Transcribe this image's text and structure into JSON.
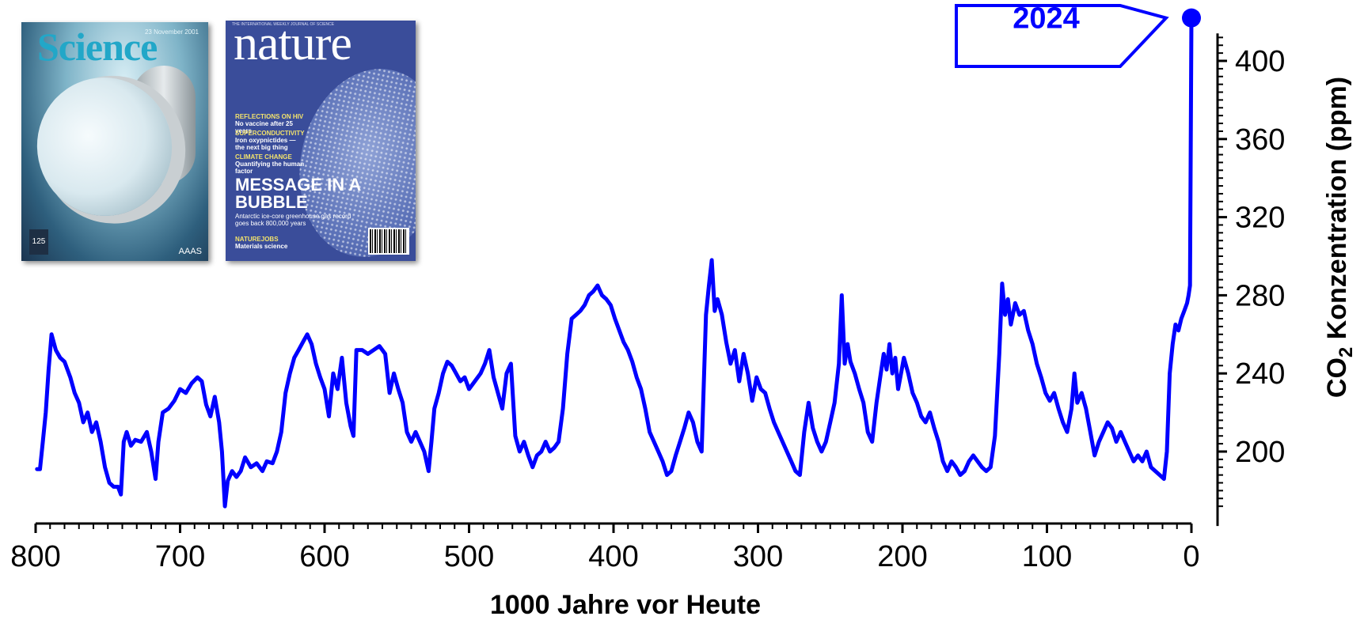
{
  "chart_data": {
    "type": "line",
    "xlabel": "1000 Jahre vor Heute",
    "ylabel": "CO₂ Konzentration (ppm)",
    "ylabel_parts": {
      "pre": "CO",
      "sub": "2",
      "post": " Konzentration (ppm)"
    },
    "x_major_ticks": [
      800,
      700,
      600,
      500,
      400,
      300,
      200,
      100,
      0
    ],
    "y_major_ticks": [
      200,
      240,
      280,
      320,
      360,
      400
    ],
    "xlim": [
      800,
      0
    ],
    "ylim": [
      170,
      410
    ],
    "x_reversed": true,
    "grid": false,
    "highlight": {
      "label": "2024",
      "x": 0,
      "y": 422
    },
    "series": [
      {
        "color": "#0000ff",
        "points": [
          [
            799,
            191
          ],
          [
            797,
            191
          ],
          [
            795,
            205
          ],
          [
            793,
            220
          ],
          [
            791,
            242
          ],
          [
            789,
            260
          ],
          [
            786,
            252
          ],
          [
            783,
            248
          ],
          [
            780,
            246
          ],
          [
            776,
            238
          ],
          [
            773,
            230
          ],
          [
            770,
            225
          ],
          [
            767,
            215
          ],
          [
            764,
            220
          ],
          [
            761,
            210
          ],
          [
            758,
            215
          ],
          [
            755,
            205
          ],
          [
            752,
            192
          ],
          [
            749,
            184
          ],
          [
            746,
            182
          ],
          [
            743,
            182
          ],
          [
            741,
            178
          ],
          [
            739,
            205
          ],
          [
            737,
            210
          ],
          [
            734,
            203
          ],
          [
            731,
            206
          ],
          [
            727,
            205
          ],
          [
            723,
            210
          ],
          [
            720,
            200
          ],
          [
            717,
            186
          ],
          [
            715,
            205
          ],
          [
            712,
            220
          ],
          [
            708,
            222
          ],
          [
            704,
            226
          ],
          [
            700,
            232
          ],
          [
            696,
            230
          ],
          [
            692,
            235
          ],
          [
            688,
            238
          ],
          [
            685,
            236
          ],
          [
            682,
            224
          ],
          [
            679,
            218
          ],
          [
            676,
            228
          ],
          [
            673,
            215
          ],
          [
            671,
            200
          ],
          [
            669,
            172
          ],
          [
            667,
            185
          ],
          [
            664,
            190
          ],
          [
            661,
            187
          ],
          [
            658,
            190
          ],
          [
            655,
            197
          ],
          [
            651,
            192
          ],
          [
            647,
            194
          ],
          [
            643,
            190
          ],
          [
            640,
            195
          ],
          [
            636,
            194
          ],
          [
            633,
            200
          ],
          [
            630,
            210
          ],
          [
            627,
            230
          ],
          [
            624,
            240
          ],
          [
            621,
            248
          ],
          [
            618,
            252
          ],
          [
            615,
            256
          ],
          [
            612,
            260
          ],
          [
            609,
            255
          ],
          [
            606,
            245
          ],
          [
            603,
            238
          ],
          [
            600,
            232
          ],
          [
            597,
            218
          ],
          [
            594,
            240
          ],
          [
            591,
            232
          ],
          [
            588,
            248
          ],
          [
            585,
            225
          ],
          [
            582,
            213
          ],
          [
            580,
            208
          ],
          [
            578,
            252
          ],
          [
            574,
            252
          ],
          [
            570,
            250
          ],
          [
            566,
            252
          ],
          [
            562,
            254
          ],
          [
            558,
            250
          ],
          [
            555,
            230
          ],
          [
            552,
            240
          ],
          [
            549,
            232
          ],
          [
            546,
            225
          ],
          [
            543,
            210
          ],
          [
            540,
            205
          ],
          [
            537,
            210
          ],
          [
            534,
            205
          ],
          [
            531,
            200
          ],
          [
            528,
            190
          ],
          [
            526,
            205
          ],
          [
            524,
            222
          ],
          [
            521,
            230
          ],
          [
            518,
            240
          ],
          [
            515,
            246
          ],
          [
            512,
            244
          ],
          [
            509,
            240
          ],
          [
            506,
            236
          ],
          [
            503,
            238
          ],
          [
            500,
            232
          ],
          [
            496,
            236
          ],
          [
            492,
            240
          ],
          [
            489,
            245
          ],
          [
            486,
            252
          ],
          [
            483,
            238
          ],
          [
            480,
            230
          ],
          [
            477,
            222
          ],
          [
            474,
            240
          ],
          [
            471,
            245
          ],
          [
            468,
            208
          ],
          [
            465,
            200
          ],
          [
            462,
            205
          ],
          [
            459,
            198
          ],
          [
            456,
            192
          ],
          [
            453,
            198
          ],
          [
            450,
            200
          ],
          [
            447,
            205
          ],
          [
            444,
            200
          ],
          [
            441,
            202
          ],
          [
            438,
            205
          ],
          [
            435,
            222
          ],
          [
            432,
            250
          ],
          [
            429,
            268
          ],
          [
            426,
            270
          ],
          [
            423,
            272
          ],
          [
            420,
            275
          ],
          [
            417,
            280
          ],
          [
            414,
            282
          ],
          [
            411,
            285
          ],
          [
            408,
            280
          ],
          [
            405,
            278
          ],
          [
            402,
            275
          ],
          [
            399,
            268
          ],
          [
            396,
            262
          ],
          [
            393,
            256
          ],
          [
            390,
            252
          ],
          [
            387,
            246
          ],
          [
            384,
            238
          ],
          [
            381,
            232
          ],
          [
            378,
            222
          ],
          [
            375,
            210
          ],
          [
            372,
            205
          ],
          [
            369,
            200
          ],
          [
            366,
            195
          ],
          [
            363,
            188
          ],
          [
            360,
            190
          ],
          [
            357,
            198
          ],
          [
            354,
            205
          ],
          [
            351,
            212
          ],
          [
            348,
            220
          ],
          [
            345,
            215
          ],
          [
            342,
            205
          ],
          [
            339,
            200
          ],
          [
            336,
            270
          ],
          [
            334,
            285
          ],
          [
            332,
            298
          ],
          [
            330,
            272
          ],
          [
            328,
            278
          ],
          [
            325,
            270
          ],
          [
            322,
            256
          ],
          [
            319,
            245
          ],
          [
            316,
            252
          ],
          [
            313,
            236
          ],
          [
            310,
            250
          ],
          [
            307,
            240
          ],
          [
            304,
            226
          ],
          [
            301,
            238
          ],
          [
            298,
            232
          ],
          [
            295,
            230
          ],
          [
            292,
            222
          ],
          [
            289,
            215
          ],
          [
            286,
            210
          ],
          [
            283,
            205
          ],
          [
            280,
            200
          ],
          [
            277,
            195
          ],
          [
            274,
            190
          ],
          [
            271,
            188
          ],
          [
            268,
            210
          ],
          [
            265,
            225
          ],
          [
            262,
            212
          ],
          [
            259,
            205
          ],
          [
            256,
            200
          ],
          [
            253,
            205
          ],
          [
            250,
            215
          ],
          [
            247,
            225
          ],
          [
            244,
            245
          ],
          [
            242,
            280
          ],
          [
            240,
            245
          ],
          [
            238,
            255
          ],
          [
            236,
            246
          ],
          [
            233,
            240
          ],
          [
            230,
            232
          ],
          [
            227,
            225
          ],
          [
            224,
            210
          ],
          [
            221,
            205
          ],
          [
            218,
            225
          ],
          [
            215,
            240
          ],
          [
            213,
            250
          ],
          [
            211,
            242
          ],
          [
            209,
            255
          ],
          [
            207,
            240
          ],
          [
            205,
            248
          ],
          [
            203,
            232
          ],
          [
            201,
            240
          ],
          [
            199,
            248
          ],
          [
            196,
            240
          ],
          [
            193,
            230
          ],
          [
            190,
            225
          ],
          [
            187,
            218
          ],
          [
            184,
            215
          ],
          [
            181,
            220
          ],
          [
            178,
            212
          ],
          [
            175,
            205
          ],
          [
            172,
            195
          ],
          [
            169,
            190
          ],
          [
            166,
            195
          ],
          [
            163,
            192
          ],
          [
            160,
            188
          ],
          [
            157,
            190
          ],
          [
            154,
            195
          ],
          [
            151,
            198
          ],
          [
            148,
            195
          ],
          [
            145,
            192
          ],
          [
            142,
            190
          ],
          [
            139,
            192
          ],
          [
            136,
            208
          ],
          [
            133,
            250
          ],
          [
            131,
            286
          ],
          [
            129,
            270
          ],
          [
            127,
            278
          ],
          [
            125,
            265
          ],
          [
            122,
            276
          ],
          [
            119,
            270
          ],
          [
            116,
            272
          ],
          [
            113,
            262
          ],
          [
            110,
            255
          ],
          [
            107,
            245
          ],
          [
            104,
            238
          ],
          [
            101,
            230
          ],
          [
            98,
            226
          ],
          [
            95,
            230
          ],
          [
            92,
            222
          ],
          [
            89,
            215
          ],
          [
            86,
            210
          ],
          [
            83,
            222
          ],
          [
            81,
            240
          ],
          [
            79,
            225
          ],
          [
            76,
            230
          ],
          [
            73,
            222
          ],
          [
            70,
            210
          ],
          [
            67,
            198
          ],
          [
            64,
            205
          ],
          [
            61,
            210
          ],
          [
            58,
            215
          ],
          [
            55,
            212
          ],
          [
            52,
            205
          ],
          [
            49,
            210
          ],
          [
            46,
            205
          ],
          [
            43,
            200
          ],
          [
            40,
            195
          ],
          [
            37,
            198
          ],
          [
            34,
            195
          ],
          [
            31,
            200
          ],
          [
            28,
            192
          ],
          [
            25,
            190
          ],
          [
            22,
            188
          ],
          [
            19,
            186
          ],
          [
            17,
            200
          ],
          [
            15,
            240
          ],
          [
            13,
            255
          ],
          [
            11,
            265
          ],
          [
            9,
            262
          ],
          [
            7,
            268
          ],
          [
            5,
            272
          ],
          [
            3,
            276
          ],
          [
            2,
            280
          ],
          [
            1,
            285
          ],
          [
            0,
            422
          ]
        ]
      }
    ]
  },
  "covers": {
    "science": {
      "title": "Science",
      "date": "23 November 2001",
      "badge": "125",
      "publisher": "AAAS"
    },
    "nature": {
      "masthead_top": "THE INTERNATIONAL WEEKLY JOURNAL OF SCIENCE",
      "title": "nature",
      "items": [
        {
          "heading": "REFLECTIONS ON HIV",
          "text": "No vaccine after 25 years"
        },
        {
          "heading": "SUPERCONDUCTIVITY",
          "text": "Iron oxypnictides — the next big thing"
        },
        {
          "heading": "CLIMATE CHANGE",
          "text": "Quantifying the human factor"
        }
      ],
      "headline": "MESSAGE IN A BUBBLE",
      "subline": "Antarctic ice-core greenhouse gas record goes back 800,000 years",
      "footer_heading": "NATUREJOBS",
      "footer_text": "Materials science"
    }
  }
}
